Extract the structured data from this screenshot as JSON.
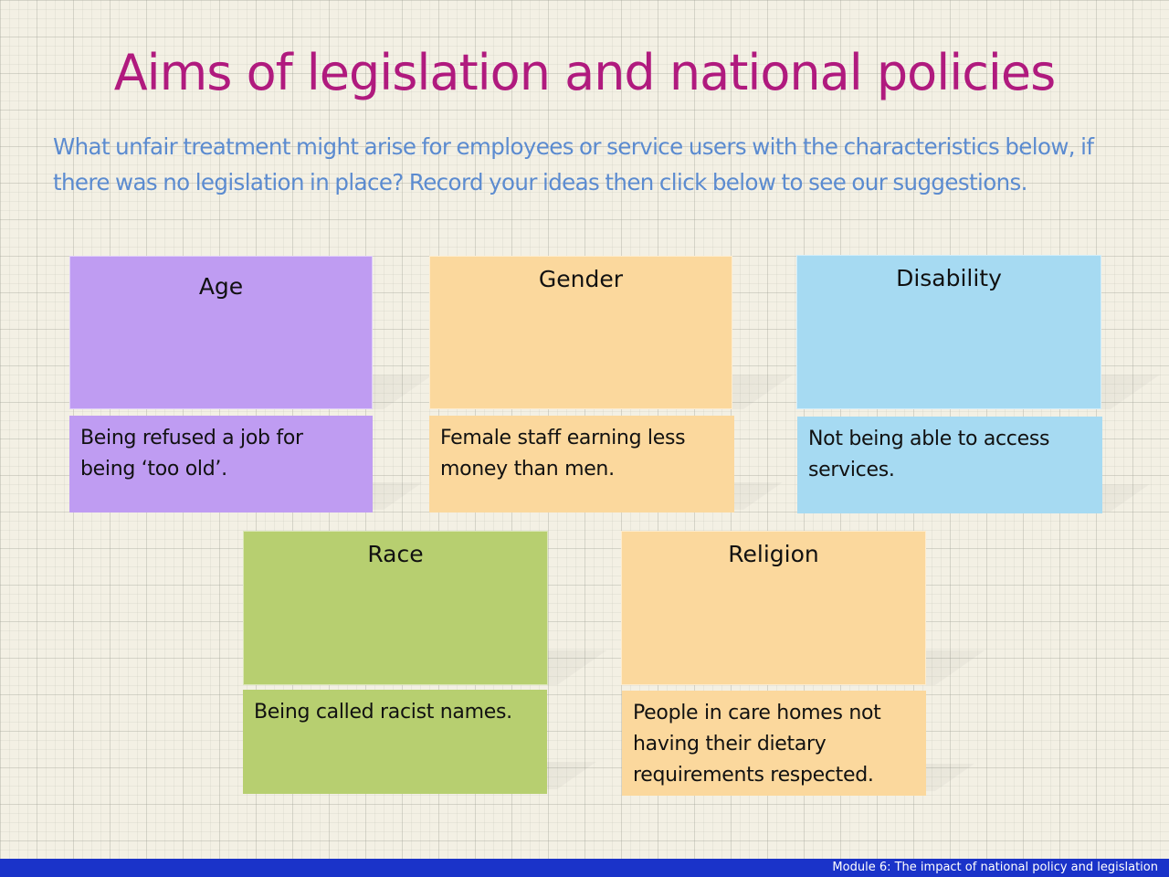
{
  "slide": {
    "title": "Aims of legislation and national policies",
    "intro": "What unfair treatment might arise for employees or service users with the characteristics below, if there was no legislation in place? Record your ideas then click below to see our suggestions."
  },
  "cards": [
    {
      "heading": "Age",
      "suggestion": "Being refused a job for being ‘too old’.",
      "color": "#bf9cf2"
    },
    {
      "heading": "Gender",
      "suggestion": "Female staff earning less money than men.",
      "color": "#fbd89d"
    },
    {
      "heading": "Disability",
      "suggestion": "Not being able to access services.",
      "color": "#a6daf2"
    },
    {
      "heading": "Race",
      "suggestion": "Being called racist names.",
      "color": "#b7cf70"
    },
    {
      "heading": "Religion",
      "suggestion": "People in care homes not having their dietary requirements respected.",
      "color": "#fbd89d"
    }
  ],
  "footer": {
    "text": "Module 6: The impact of national policy and legislation",
    "color": "#1a33c9"
  }
}
